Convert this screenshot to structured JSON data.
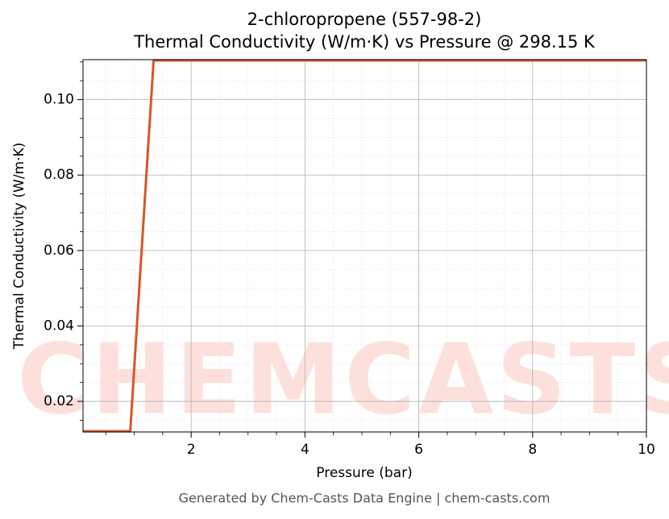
{
  "chart_data": {
    "type": "line",
    "title": "2-chloropropene (557-98-2)",
    "subtitle": "Thermal Conductivity (W/m·K) vs Pressure @ 298.15 K",
    "xlabel": "Pressure (bar)",
    "ylabel": "Thermal Conductivity (W/m·K)",
    "watermark": "CHEMCASTS",
    "footer": "Generated by Chem-Casts Data Engine | chem-casts.com",
    "x": [
      0.1,
      0.93,
      1.34,
      10
    ],
    "series": [
      {
        "name": "Thermal Conductivity",
        "color": "#d4562a",
        "values": [
          0.0121,
          0.0121,
          0.1104,
          0.1104
        ]
      }
    ],
    "xlim": [
      0.1,
      10
    ],
    "ylim": [
      0.0119,
      0.1106
    ],
    "xticks": [
      2,
      4,
      6,
      8,
      10
    ],
    "yticks": [
      {
        "value": 0.02,
        "label": "0.02"
      },
      {
        "value": 0.04,
        "label": "0.04"
      },
      {
        "value": 0.06,
        "label": "0.06"
      },
      {
        "value": 0.08,
        "label": "0.08"
      },
      {
        "value": 0.1,
        "label": "0.10"
      }
    ],
    "xminorticks": [
      0.5,
      1,
      1.5,
      2.5,
      3,
      3.5,
      4.5,
      5,
      5.5,
      6.5,
      7,
      7.5,
      8.5,
      9,
      9.5
    ],
    "yminorticks": [
      0.015,
      0.025,
      0.03,
      0.035,
      0.045,
      0.05,
      0.055,
      0.065,
      0.07,
      0.075,
      0.085,
      0.09,
      0.095,
      0.105,
      0.11
    ],
    "grid": true
  }
}
